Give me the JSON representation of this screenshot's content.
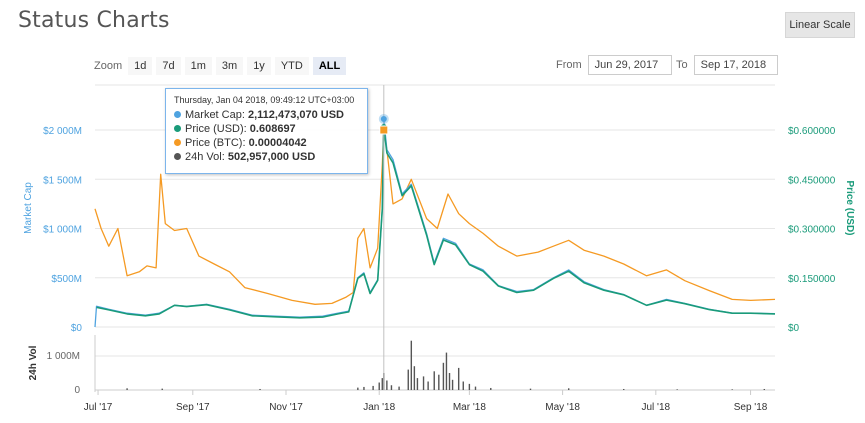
{
  "page": {
    "title": "Status Charts",
    "scale_button": "Linear Scale"
  },
  "zoom": {
    "label": "Zoom",
    "options": [
      {
        "label": "1d",
        "active": false
      },
      {
        "label": "7d",
        "active": false
      },
      {
        "label": "1m",
        "active": false
      },
      {
        "label": "3m",
        "active": false
      },
      {
        "label": "1y",
        "active": false
      },
      {
        "label": "YTD",
        "active": false
      },
      {
        "label": "ALL",
        "active": true
      }
    ]
  },
  "range": {
    "from_label": "From",
    "from_value": "Jun 29, 2017",
    "to_label": "To",
    "to_value": "Sep 17, 2018"
  },
  "tooltip": {
    "header": "Thursday, Jan 04 2018, 09:49:12 UTC+03:00",
    "rows": [
      {
        "label": "Market Cap:",
        "value": "2,112,473,070 USD",
        "color": "#4fa3e0"
      },
      {
        "label": "Price (USD):",
        "value": "0.608697",
        "color": "#1a9b7a"
      },
      {
        "label": "Price (BTC):",
        "value": "0.00004042",
        "color": "#f59a23"
      },
      {
        "label": "24h Vol:",
        "value": "502,957,000 USD",
        "color": "#555555"
      }
    ]
  },
  "colors": {
    "market_cap": "#4fa3e0",
    "price_usd": "#1a9b7a",
    "price_btc": "#f59a23",
    "volume": "#555555"
  },
  "chart_data": {
    "type": "line",
    "x_range": [
      "2017-06-29",
      "2018-09-17"
    ],
    "x_tick_labels": [
      "Jul '17",
      "Sep '17",
      "Nov '17",
      "Jan '18",
      "Mar '18",
      "May '18",
      "Jul '18",
      "Sep '18"
    ],
    "left_axis": {
      "label": "Market Cap",
      "tick_labels": [
        "$0",
        "$500M",
        "$1 000M",
        "$1 500M",
        "$2 000M"
      ],
      "range": [
        0,
        2000
      ]
    },
    "right_axis": {
      "label": "Price (USD)",
      "tick_labels": [
        "$0",
        "$0.150000",
        "$0.300000",
        "$0.450000",
        "$0.600000"
      ],
      "range": [
        0,
        0.6
      ]
    },
    "volume_axis": {
      "label": "24h Vol",
      "tick_labels": [
        "0",
        "1 000M"
      ]
    },
    "crosshair_date": "2018-01-04",
    "series": [
      {
        "name": "Market Cap",
        "axis": "left",
        "points": [
          [
            "2017-06-29",
            0
          ],
          [
            "2017-06-30",
            210
          ],
          [
            "2017-07-08",
            180
          ],
          [
            "2017-07-20",
            140
          ],
          [
            "2017-08-01",
            120
          ],
          [
            "2017-08-10",
            140
          ],
          [
            "2017-08-20",
            220
          ],
          [
            "2017-08-28",
            210
          ],
          [
            "2017-09-10",
            230
          ],
          [
            "2017-09-25",
            180
          ],
          [
            "2017-10-10",
            120
          ],
          [
            "2017-10-25",
            110
          ],
          [
            "2017-11-10",
            100
          ],
          [
            "2017-11-25",
            110
          ],
          [
            "2017-12-05",
            140
          ],
          [
            "2017-12-12",
            160
          ],
          [
            "2017-12-18",
            500
          ],
          [
            "2017-12-22",
            550
          ],
          [
            "2017-12-26",
            350
          ],
          [
            "2017-12-31",
            480
          ],
          [
            "2018-01-03",
            1200
          ],
          [
            "2018-01-04",
            2112
          ],
          [
            "2018-01-06",
            1800
          ],
          [
            "2018-01-10",
            1700
          ],
          [
            "2018-01-16",
            1350
          ],
          [
            "2018-01-22",
            1450
          ],
          [
            "2018-02-01",
            950
          ],
          [
            "2018-02-06",
            650
          ],
          [
            "2018-02-12",
            900
          ],
          [
            "2018-02-20",
            850
          ],
          [
            "2018-03-01",
            640
          ],
          [
            "2018-03-10",
            580
          ],
          [
            "2018-03-20",
            420
          ],
          [
            "2018-04-01",
            360
          ],
          [
            "2018-04-12",
            380
          ],
          [
            "2018-04-25",
            500
          ],
          [
            "2018-05-05",
            580
          ],
          [
            "2018-05-15",
            460
          ],
          [
            "2018-05-28",
            380
          ],
          [
            "2018-06-10",
            330
          ],
          [
            "2018-06-25",
            220
          ],
          [
            "2018-07-08",
            280
          ],
          [
            "2018-07-20",
            240
          ],
          [
            "2018-08-05",
            180
          ],
          [
            "2018-08-20",
            140
          ],
          [
            "2018-09-01",
            140
          ],
          [
            "2018-09-17",
            135
          ]
        ]
      },
      {
        "name": "Price (USD)",
        "axis": "right",
        "points": [
          [
            "2017-06-30",
            0.06
          ],
          [
            "2017-07-08",
            0.052
          ],
          [
            "2017-07-20",
            0.04
          ],
          [
            "2017-08-01",
            0.034
          ],
          [
            "2017-08-10",
            0.04
          ],
          [
            "2017-08-20",
            0.066
          ],
          [
            "2017-08-28",
            0.062
          ],
          [
            "2017-09-10",
            0.068
          ],
          [
            "2017-09-25",
            0.052
          ],
          [
            "2017-10-10",
            0.034
          ],
          [
            "2017-10-25",
            0.031
          ],
          [
            "2017-11-10",
            0.028
          ],
          [
            "2017-11-25",
            0.03
          ],
          [
            "2017-12-05",
            0.04
          ],
          [
            "2017-12-12",
            0.046
          ],
          [
            "2017-12-18",
            0.148
          ],
          [
            "2017-12-22",
            0.162
          ],
          [
            "2017-12-26",
            0.102
          ],
          [
            "2017-12-31",
            0.142
          ],
          [
            "2018-01-03",
            0.36
          ],
          [
            "2018-01-04",
            0.609
          ],
          [
            "2018-01-06",
            0.53
          ],
          [
            "2018-01-10",
            0.5
          ],
          [
            "2018-01-16",
            0.4
          ],
          [
            "2018-01-22",
            0.43
          ],
          [
            "2018-02-01",
            0.28
          ],
          [
            "2018-02-06",
            0.19
          ],
          [
            "2018-02-12",
            0.265
          ],
          [
            "2018-02-20",
            0.25
          ],
          [
            "2018-03-01",
            0.19
          ],
          [
            "2018-03-10",
            0.17
          ],
          [
            "2018-03-20",
            0.125
          ],
          [
            "2018-04-01",
            0.105
          ],
          [
            "2018-04-12",
            0.112
          ],
          [
            "2018-04-25",
            0.148
          ],
          [
            "2018-05-05",
            0.17
          ],
          [
            "2018-05-15",
            0.135
          ],
          [
            "2018-05-28",
            0.112
          ],
          [
            "2018-06-10",
            0.098
          ],
          [
            "2018-06-25",
            0.066
          ],
          [
            "2018-07-08",
            0.082
          ],
          [
            "2018-07-20",
            0.071
          ],
          [
            "2018-08-05",
            0.053
          ],
          [
            "2018-08-20",
            0.042
          ],
          [
            "2018-09-01",
            0.042
          ],
          [
            "2018-09-17",
            0.04
          ]
        ]
      },
      {
        "name": "Price (BTC)",
        "axis": "left_scaled",
        "points": [
          [
            "2017-06-29",
            1200
          ],
          [
            "2017-07-03",
            1000
          ],
          [
            "2017-07-08",
            820
          ],
          [
            "2017-07-14",
            1000
          ],
          [
            "2017-07-20",
            520
          ],
          [
            "2017-07-28",
            560
          ],
          [
            "2017-08-02",
            620
          ],
          [
            "2017-08-08",
            600
          ],
          [
            "2017-08-11",
            1550
          ],
          [
            "2017-08-14",
            1050
          ],
          [
            "2017-08-20",
            980
          ],
          [
            "2017-08-28",
            1000
          ],
          [
            "2017-09-05",
            720
          ],
          [
            "2017-09-15",
            640
          ],
          [
            "2017-09-25",
            560
          ],
          [
            "2017-10-05",
            400
          ],
          [
            "2017-10-20",
            340
          ],
          [
            "2017-11-05",
            270
          ],
          [
            "2017-11-20",
            230
          ],
          [
            "2017-12-01",
            240
          ],
          [
            "2017-12-10",
            300
          ],
          [
            "2017-12-15",
            350
          ],
          [
            "2017-12-18",
            900
          ],
          [
            "2017-12-22",
            1000
          ],
          [
            "2017-12-26",
            600
          ],
          [
            "2017-12-31",
            800
          ],
          [
            "2018-01-03",
            1650
          ],
          [
            "2018-01-04",
            2000
          ],
          [
            "2018-01-06",
            1800
          ],
          [
            "2018-01-10",
            1250
          ],
          [
            "2018-01-16",
            1300
          ],
          [
            "2018-01-22",
            1500
          ],
          [
            "2018-02-01",
            1100
          ],
          [
            "2018-02-08",
            1000
          ],
          [
            "2018-02-15",
            1350
          ],
          [
            "2018-02-22",
            1150
          ],
          [
            "2018-03-01",
            1050
          ],
          [
            "2018-03-10",
            950
          ],
          [
            "2018-03-20",
            820
          ],
          [
            "2018-04-01",
            720
          ],
          [
            "2018-04-15",
            760
          ],
          [
            "2018-04-25",
            820
          ],
          [
            "2018-05-05",
            880
          ],
          [
            "2018-05-15",
            780
          ],
          [
            "2018-05-28",
            720
          ],
          [
            "2018-06-10",
            640
          ],
          [
            "2018-06-25",
            520
          ],
          [
            "2018-07-08",
            580
          ],
          [
            "2018-07-20",
            470
          ],
          [
            "2018-08-05",
            370
          ],
          [
            "2018-08-20",
            280
          ],
          [
            "2018-09-01",
            270
          ],
          [
            "2018-09-17",
            280
          ]
        ]
      }
    ],
    "volume": {
      "name": "24h Vol",
      "points": [
        [
          "2017-07-20",
          0.05
        ],
        [
          "2017-08-12",
          0.04
        ],
        [
          "2017-10-15",
          0.03
        ],
        [
          "2017-12-18",
          0.07
        ],
        [
          "2017-12-22",
          0.09
        ],
        [
          "2017-12-28",
          0.12
        ],
        [
          "2018-01-01",
          0.22
        ],
        [
          "2018-01-03",
          0.35
        ],
        [
          "2018-01-04",
          0.5
        ],
        [
          "2018-01-06",
          0.28
        ],
        [
          "2018-01-09",
          0.14
        ],
        [
          "2018-01-14",
          0.1
        ],
        [
          "2018-01-20",
          0.6
        ],
        [
          "2018-01-22",
          1.45
        ],
        [
          "2018-01-24",
          0.7
        ],
        [
          "2018-01-26",
          0.35
        ],
        [
          "2018-01-30",
          0.4
        ],
        [
          "2018-02-02",
          0.25
        ],
        [
          "2018-02-06",
          0.55
        ],
        [
          "2018-02-09",
          0.45
        ],
        [
          "2018-02-12",
          0.8
        ],
        [
          "2018-02-14",
          1.1
        ],
        [
          "2018-02-16",
          0.5
        ],
        [
          "2018-02-18",
          0.3
        ],
        [
          "2018-02-22",
          0.65
        ],
        [
          "2018-02-25",
          0.25
        ],
        [
          "2018-03-01",
          0.18
        ],
        [
          "2018-03-05",
          0.1
        ],
        [
          "2018-03-15",
          0.06
        ],
        [
          "2018-04-10",
          0.04
        ],
        [
          "2018-05-05",
          0.05
        ],
        [
          "2018-06-10",
          0.03
        ],
        [
          "2018-07-15",
          0.02
        ],
        [
          "2018-08-20",
          0.02
        ],
        [
          "2018-09-10",
          0.03
        ]
      ]
    }
  }
}
